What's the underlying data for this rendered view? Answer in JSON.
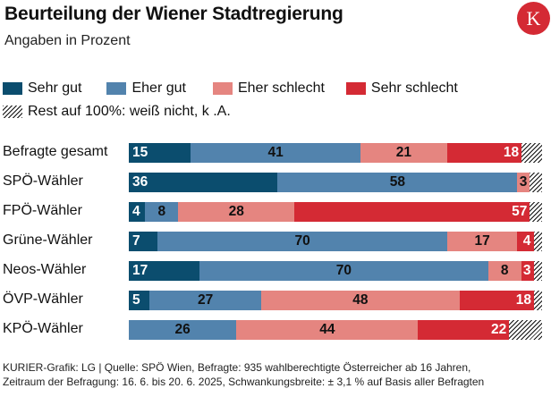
{
  "header": {
    "title": "Beurteilung der Wiener Stadtregierung",
    "subtitle": "Angaben in Prozent",
    "logo_letter": "K"
  },
  "colors": {
    "sehr_gut": "#0b4d6e",
    "eher_gut": "#5283ad",
    "eher_schlecht": "#e58580",
    "sehr_schlecht": "#d42a34",
    "logo": "#d42a34"
  },
  "legend": {
    "items": [
      {
        "label": "Sehr gut",
        "color": "#0b4d6e"
      },
      {
        "label": "Eher gut",
        "color": "#5283ad"
      },
      {
        "label": "Eher schlecht",
        "color": "#e58580"
      },
      {
        "label": "Sehr schlecht",
        "color": "#d42a34"
      }
    ],
    "rest_label": "Rest auf 100%: weiß nicht, k .A."
  },
  "chart_data": {
    "type": "bar",
    "orientation": "horizontal",
    "stacked": true,
    "title": "Beurteilung der Wiener Stadtregierung",
    "subtitle": "Angaben in Prozent",
    "xlim": [
      0,
      100
    ],
    "categories": [
      "Befragte gesamt",
      "SPÖ-Wähler",
      "FPÖ-Wähler",
      "Grüne-Wähler",
      "Neos-Wähler",
      "ÖVP-Wähler",
      "KPÖ-Wähler"
    ],
    "series": [
      {
        "name": "Sehr gut",
        "values": [
          15,
          36,
          4,
          7,
          17,
          5,
          0
        ],
        "label_color": "#ffffff"
      },
      {
        "name": "Eher gut",
        "values": [
          41,
          58,
          8,
          70,
          70,
          27,
          26
        ],
        "label_color": "#111111"
      },
      {
        "name": "Eher schlecht",
        "values": [
          21,
          3,
          28,
          17,
          8,
          48,
          44
        ],
        "label_color": "#111111"
      },
      {
        "name": "Sehr schlecht",
        "values": [
          18,
          0,
          57,
          4,
          3,
          18,
          22
        ],
        "label_color": "#ffffff"
      }
    ],
    "rest_label": "Rest auf 100%: weiß nicht, k .A."
  },
  "footer": {
    "line1": "KURIER-Grafik: LG | Quelle: SPÖ Wien, Befragte: 935 wahlberechtigte Österreicher ab 16 Jahren,",
    "line2": "Zeitraum der Befragung: 16. 6. bis 20. 6. 2025, Schwankungsbreite: ± 3,1 % auf Basis aller Befragten"
  }
}
